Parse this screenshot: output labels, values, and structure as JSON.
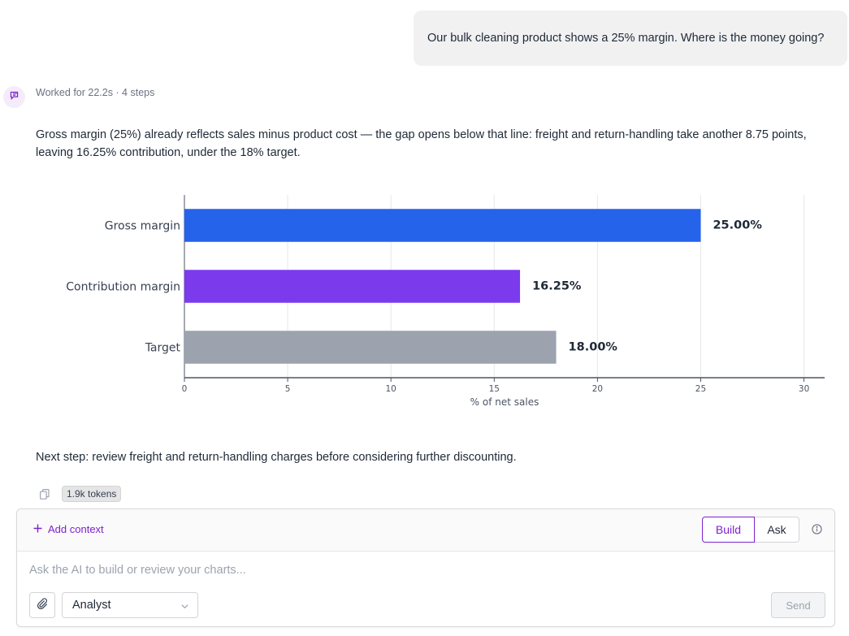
{
  "user_message": "Our bulk cleaning product shows a 25% margin. Where is the money going?",
  "assistant": {
    "worked_label": "Worked for 22.2s · 4 steps",
    "answer": "Gross margin (25%) already reflects sales minus product cost — the gap opens below that line: freight and return-handling take another 8.75 points, leaving 16.25% contribution, under the 18% target.",
    "next_step": "Next step: review freight and return-handling charges before considering further discounting.",
    "tokens": "1.9k tokens"
  },
  "chart_data": {
    "type": "bar",
    "orientation": "horizontal",
    "categories": [
      "Gross margin",
      "Contribution margin",
      "Target"
    ],
    "values": [
      25,
      16.25,
      18
    ],
    "value_labels": [
      "25.00%",
      "16.25%",
      "18.00%"
    ],
    "colors": [
      "#2563eb",
      "#7c3aed",
      "#9ca3af"
    ],
    "xlabel": "% of net sales",
    "ylabel": "",
    "xlim": [
      0,
      31
    ],
    "xticks": [
      0,
      5,
      10,
      15,
      20,
      25,
      30
    ],
    "grid": true,
    "legend": "none"
  },
  "composer": {
    "add_context": "Add context",
    "mode_build": "Build",
    "mode_ask": "Ask",
    "placeholder": "Ask the AI to build or review your charts...",
    "agent": "Analyst",
    "send": "Send"
  },
  "colors": {
    "accent": "#7e22ce"
  }
}
